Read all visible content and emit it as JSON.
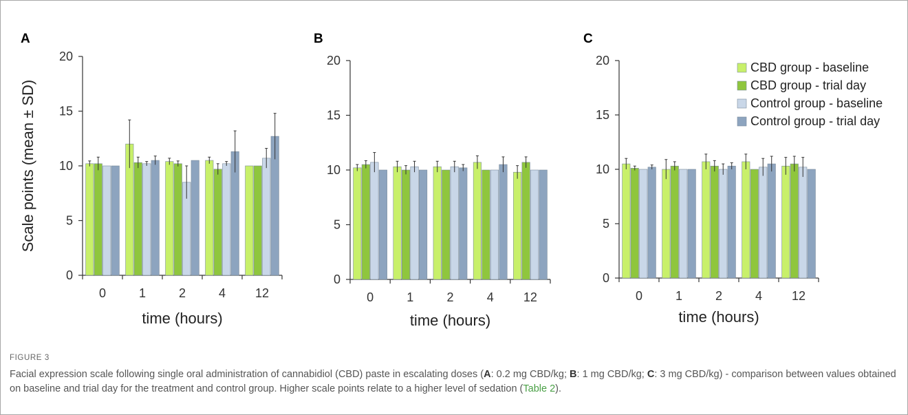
{
  "chart_data": [
    {
      "type": "bar",
      "panel": "A",
      "categories": [
        "0",
        "1",
        "2",
        "4",
        "12"
      ],
      "xlabel": "time (hours)",
      "ylabel": "Scale points (mean ± SD)",
      "ylim": [
        0,
        20
      ],
      "yticks": [
        0,
        5,
        10,
        15,
        20
      ],
      "series": [
        {
          "name": "CBD group - baseline",
          "values": [
            10.2,
            12.0,
            10.4,
            10.5,
            10.0
          ],
          "sd": [
            0.25,
            2.2,
            0.3,
            0.3,
            0.0
          ]
        },
        {
          "name": "CBD group - trial day",
          "values": [
            10.2,
            10.3,
            10.2,
            9.7,
            10.0
          ],
          "sd": [
            0.6,
            0.5,
            0.25,
            0.5,
            0.0
          ]
        },
        {
          "name": "Control group - baseline",
          "values": [
            10.0,
            10.2,
            8.5,
            10.2,
            10.7
          ],
          "sd": [
            0.0,
            0.2,
            1.5,
            0.2,
            0.9
          ]
        },
        {
          "name": "Control group - trial day",
          "values": [
            10.0,
            10.5,
            10.5,
            11.3,
            12.7
          ],
          "sd": [
            0.0,
            0.4,
            0.0,
            1.9,
            2.1
          ]
        }
      ]
    },
    {
      "type": "bar",
      "panel": "B",
      "categories": [
        "0",
        "1",
        "2",
        "4",
        "12"
      ],
      "xlabel": "time (hours)",
      "ylabel": "",
      "ylim": [
        0,
        20
      ],
      "yticks": [
        0,
        5,
        10,
        15,
        20
      ],
      "series": [
        {
          "name": "CBD group - baseline",
          "values": [
            10.2,
            10.3,
            10.3,
            10.7,
            9.8
          ],
          "sd": [
            0.3,
            0.5,
            0.5,
            0.6,
            0.6
          ]
        },
        {
          "name": "CBD group - trial day",
          "values": [
            10.5,
            10.0,
            10.0,
            10.0,
            10.7
          ],
          "sd": [
            0.35,
            0.4,
            0.0,
            0.0,
            0.5
          ]
        },
        {
          "name": "Control group - baseline",
          "values": [
            10.7,
            10.3,
            10.3,
            10.0,
            10.0
          ],
          "sd": [
            0.9,
            0.5,
            0.5,
            0.0,
            0.0
          ]
        },
        {
          "name": "Control group - trial day",
          "values": [
            10.0,
            10.0,
            10.2,
            10.5,
            10.0
          ],
          "sd": [
            0.0,
            0.0,
            0.3,
            0.7,
            0.0
          ]
        }
      ]
    },
    {
      "type": "bar",
      "panel": "C",
      "categories": [
        "0",
        "1",
        "2",
        "4",
        "12"
      ],
      "xlabel": "time (hours)",
      "ylabel": "",
      "ylim": [
        0,
        20
      ],
      "yticks": [
        0,
        5,
        10,
        15,
        20
      ],
      "legend_position": "top-right",
      "series": [
        {
          "name": "CBD group - baseline",
          "values": [
            10.5,
            10.0,
            10.7,
            10.7,
            10.3
          ],
          "sd": [
            0.5,
            0.9,
            0.7,
            0.7,
            0.8
          ]
        },
        {
          "name": "CBD group - trial day",
          "values": [
            10.1,
            10.3,
            10.3,
            10.0,
            10.5
          ],
          "sd": [
            0.2,
            0.4,
            0.5,
            0.0,
            0.7
          ]
        },
        {
          "name": "Control group - baseline",
          "values": [
            10.0,
            10.0,
            10.0,
            10.2,
            10.2
          ],
          "sd": [
            0.0,
            0.0,
            0.5,
            0.8,
            0.9
          ]
        },
        {
          "name": "Control group - trial day",
          "values": [
            10.2,
            10.0,
            10.3,
            10.5,
            10.0
          ],
          "sd": [
            0.2,
            0.0,
            0.3,
            0.7,
            0.0
          ]
        }
      ]
    }
  ],
  "series_colors": [
    "#c8f06a",
    "#8fc63d",
    "#c9d7e8",
    "#8da4bf"
  ],
  "legend": {
    "items": [
      "CBD group - baseline",
      "CBD group - trial day",
      "Control group - baseline",
      "Control group - trial day"
    ]
  },
  "caption": {
    "label": "FIGURE 3",
    "p1": "Facial expression scale following single oral administration of cannabidiol (CBD) paste in escalating doses (",
    "a": "A",
    "p2": ": 0.2 mg CBD/kg; ",
    "b": "B",
    "p3": ": 1 mg CBD/kg; ",
    "c": "C",
    "p4": ": 3 mg CBD/kg) - comparison between values obtained on baseline and trial day for the treatment and control group. Higher scale points relate to a higher level of sedation (",
    "link": "Table 2",
    "p5": ")."
  }
}
